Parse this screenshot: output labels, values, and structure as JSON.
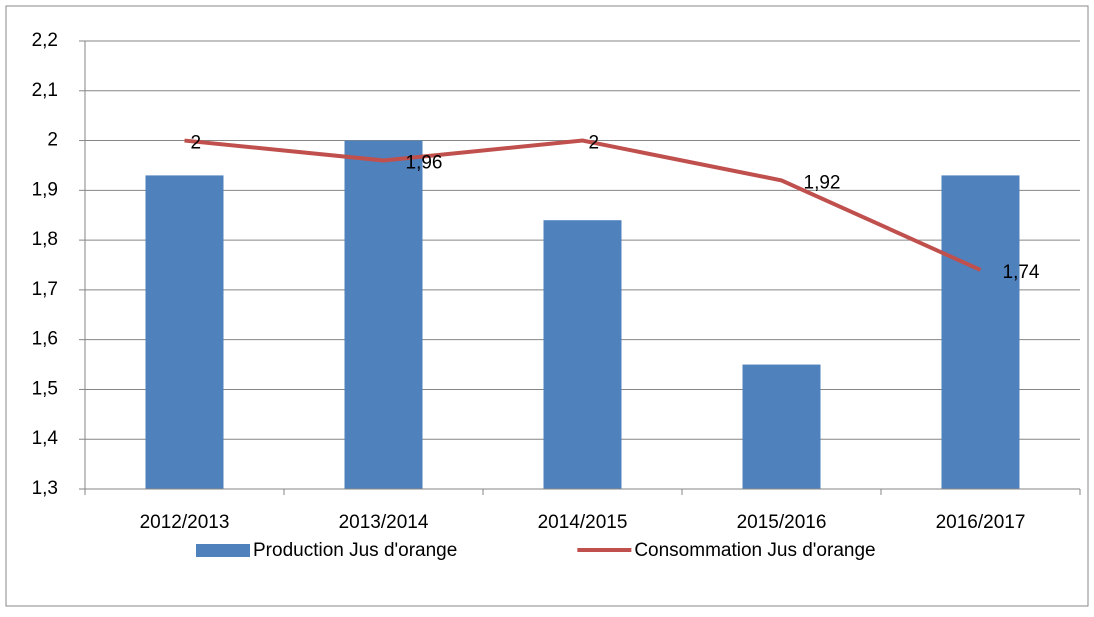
{
  "chart_data": {
    "type": "combo",
    "categories": [
      "2012/2013",
      "2013/2014",
      "2014/2015",
      "2015/2016",
      "2016/2017"
    ],
    "series": [
      {
        "name": "Production Jus d'orange",
        "type": "bar",
        "color": "#4f81bd",
        "values": [
          1.93,
          2.0,
          1.84,
          1.55,
          1.93
        ]
      },
      {
        "name": "Consommation Jus d'orange",
        "type": "line",
        "color": "#c0504d",
        "values": [
          2,
          1.96,
          2,
          1.92,
          1.74
        ],
        "value_labels": [
          "2",
          "1,96",
          "2",
          "1,92",
          "1,74"
        ]
      }
    ],
    "ylim": [
      1.3,
      2.2
    ],
    "yticks": [
      {
        "value": 1.3,
        "label": "1,3"
      },
      {
        "value": 1.4,
        "label": "1,4"
      },
      {
        "value": 1.5,
        "label": "1,5"
      },
      {
        "value": 1.6,
        "label": "1,6"
      },
      {
        "value": 1.7,
        "label": "1,7"
      },
      {
        "value": 1.8,
        "label": "1,8"
      },
      {
        "value": 1.9,
        "label": "1,9"
      },
      2,
      {
        "value": 2.1,
        "label": "2,1"
      },
      {
        "value": 2.2,
        "label": "2,2"
      }
    ],
    "grid": true,
    "legend": "bottom"
  }
}
